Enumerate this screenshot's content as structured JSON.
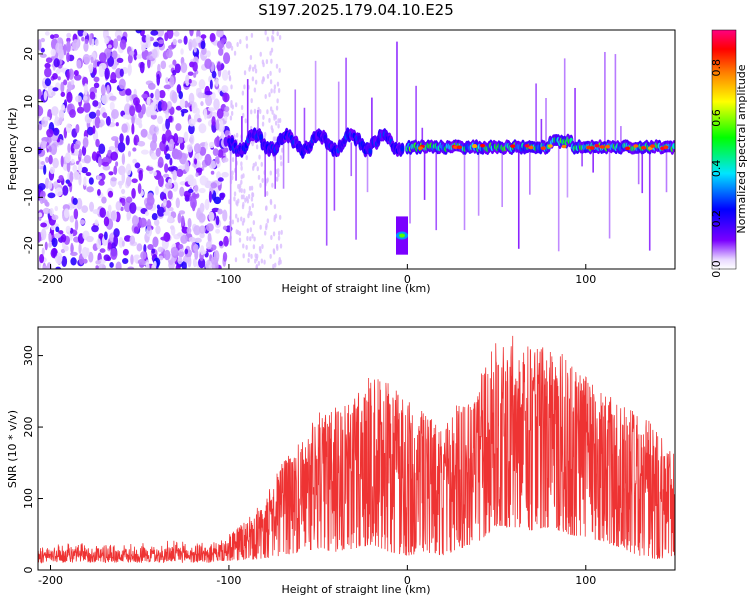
{
  "chart_data": [
    {
      "type": "heatmap",
      "title": "S197.2025.179.04.10.E25",
      "xlabel": "Height of straight line (km)",
      "ylabel": "Frequency (Hz)",
      "xlim": [
        -207,
        150
      ],
      "ylim": [
        -25,
        25
      ],
      "xticks": [
        -200,
        -100,
        0,
        100
      ],
      "yticks": [
        -20,
        -10,
        0,
        10,
        20
      ],
      "colorbar": {
        "label": "Normalized spectral amplitude",
        "range": [
          0,
          0.95
        ],
        "ticks": [
          0.0,
          0.2,
          0.4,
          0.6,
          0.8
        ],
        "colormap": [
          "#ffffff",
          "#7a00ff",
          "#0000ff",
          "#00e5ff",
          "#00ff00",
          "#ffff00",
          "#ff8000",
          "#ff0000",
          "#ff0080"
        ]
      },
      "regions": [
        {
          "x": [
            -207,
            -100
          ],
          "description": "scattered noise",
          "freq_range": [
            -25,
            25
          ],
          "amplitude": 0.1
        },
        {
          "x": [
            -100,
            -2
          ],
          "description": "signal band",
          "freq_center": 1.5,
          "amplitude": 0.3
        },
        {
          "x": [
            -5,
            -1
          ],
          "description": "isolated feature",
          "freq_center": -18,
          "amplitude": 0.5
        },
        {
          "x": [
            0,
            150
          ],
          "description": "signal band",
          "freq_center": 0.5,
          "amplitude": 0.6
        }
      ]
    },
    {
      "type": "line",
      "xlabel": "Height of straight line (km)",
      "ylabel": "SNR (10 * v/v)",
      "xlim": [
        -207,
        150
      ],
      "ylim": [
        0,
        340
      ],
      "xticks": [
        -200,
        -100,
        0,
        100
      ],
      "yticks": [
        0,
        100,
        200,
        300
      ],
      "color": "#ee3333",
      "envelope": {
        "x": [
          -207,
          -110,
          -100,
          -90,
          -80,
          -70,
          -60,
          -50,
          -40,
          -30,
          -20,
          -10,
          0,
          10,
          20,
          30,
          40,
          50,
          60,
          70,
          80,
          90,
          100,
          110,
          120,
          130,
          140,
          150
        ],
        "low": [
          10,
          10,
          12,
          14,
          16,
          20,
          25,
          30,
          25,
          30,
          35,
          25,
          20,
          25,
          20,
          30,
          40,
          60,
          60,
          55,
          60,
          50,
          45,
          40,
          30,
          20,
          15,
          20
        ],
        "high": [
          40,
          45,
          50,
          70,
          100,
          150,
          180,
          220,
          230,
          240,
          280,
          260,
          240,
          220,
          200,
          240,
          270,
          320,
          330,
          320,
          310,
          300,
          270,
          250,
          230,
          220,
          200,
          160
        ]
      }
    }
  ]
}
